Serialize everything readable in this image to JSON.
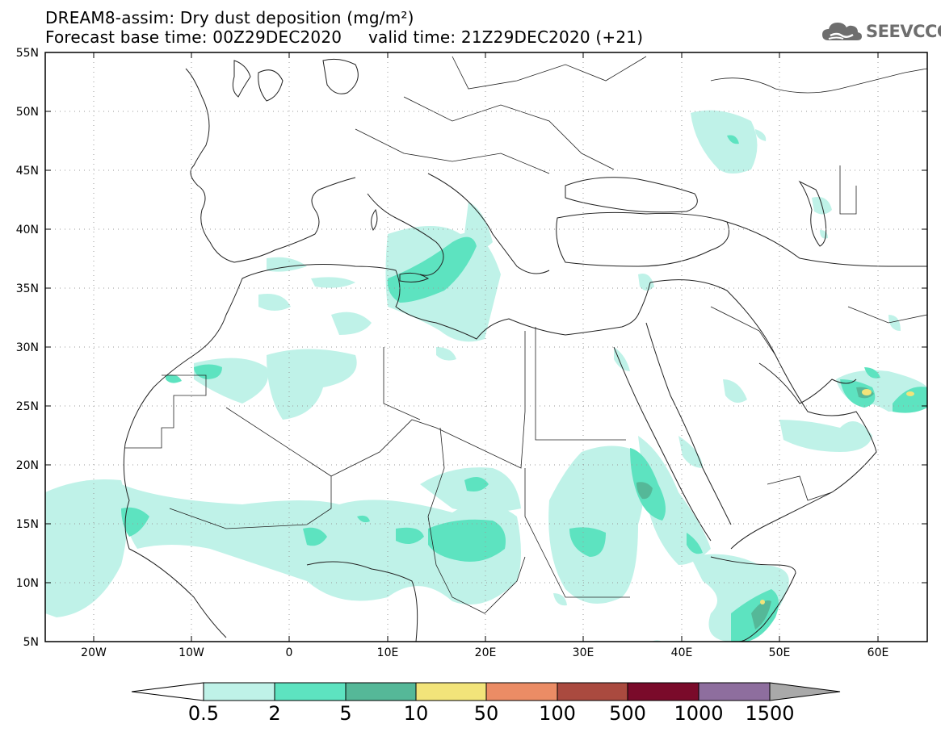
{
  "title": {
    "line1": "DREAM8-assim: Dry dust deposition (mg/m²)",
    "line2": "Forecast base time: 00Z29DEC2020     valid time: 21Z29DEC2020 (+21)"
  },
  "logo": {
    "text": "SEEVCCC",
    "icon": "cloud-icon"
  },
  "map": {
    "lon_ticks": [
      "20W",
      "10W",
      "0",
      "10E",
      "20E",
      "30E",
      "40E",
      "50E",
      "60E"
    ],
    "lat_ticks": [
      "55N",
      "50N",
      "45N",
      "40N",
      "35N",
      "30N",
      "25N",
      "20N",
      "15N",
      "10N",
      "5N"
    ],
    "lon_range": [
      -25,
      65
    ],
    "lat_range": [
      5,
      55
    ],
    "gridlines": "dotted"
  },
  "colorbar": {
    "labels": [
      "0.5",
      "2",
      "5",
      "10",
      "50",
      "100",
      "500",
      "1000",
      "1500"
    ],
    "colors": [
      "#bff2e8",
      "#5de3c0",
      "#55b898",
      "#f2e47a",
      "#eb8c65",
      "#aa4a3f",
      "#7a0a2a",
      "#8e6e9e",
      "#a9a9a9"
    ]
  }
}
